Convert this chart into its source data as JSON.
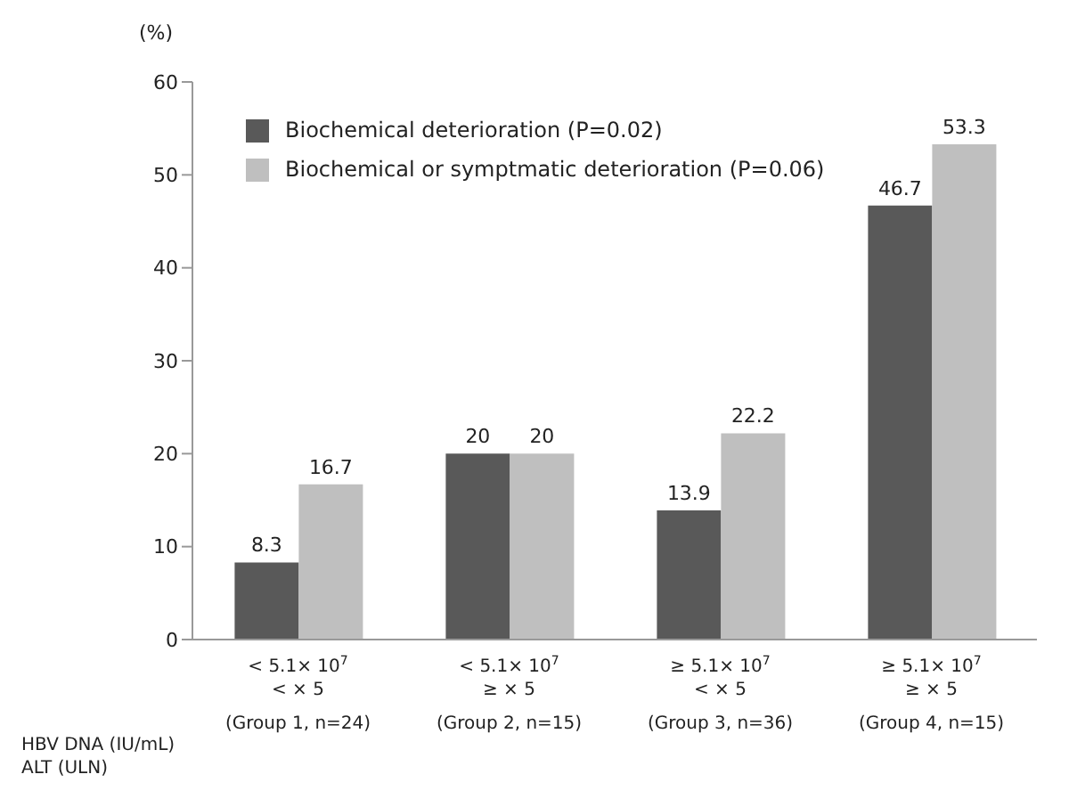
{
  "chart_data": {
    "type": "bar",
    "ylabel": "(%)",
    "categories": [
      "< 5.1× 10$^{7}$\n< × 5\n(Group 1, n=24)",
      "< 5.1× 10$^{7}$\n≥ × 5\n(Group 2, n=15)",
      "≥ 5.1× 10$^{7}$\n< × 5\n(Group 3, n=36)",
      "≥ 5.1× 10$^{7}$\n≥ × 5\n(Group 4, n=15)"
    ],
    "series": [
      {
        "name": "Biochemical deterioration (P=0.02)",
        "color": "#595959",
        "values": [
          8.3,
          20,
          13.9,
          46.7
        ]
      },
      {
        "name": "Biochemical or symptmatic deterioration (P=0.06)",
        "color": "#bfbfbf",
        "values": [
          16.7,
          20,
          22.2,
          53.3
        ]
      }
    ],
    "annotations": [
      "HBV DNA (IU/mL)",
      "ALT (ULN)"
    ],
    "ylim": [
      0,
      60
    ],
    "yticks": [
      0,
      10,
      20,
      30,
      40,
      50,
      60
    ],
    "grid": false,
    "legend": "top left",
    "data_labels": true
  }
}
